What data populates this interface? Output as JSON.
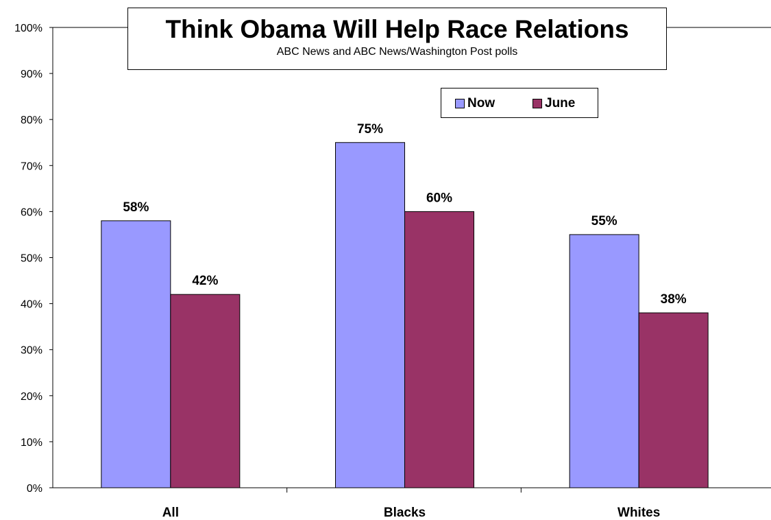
{
  "chart_data": {
    "type": "bar",
    "title": "Think Obama Will Help Race Relations",
    "subtitle": "ABC News and ABC News/Washington Post polls",
    "categories": [
      "All",
      "Blacks",
      "Whites"
    ],
    "series": [
      {
        "name": "Now",
        "values": [
          58,
          75,
          55
        ],
        "color": "#9999ff",
        "labels": [
          "58%",
          "75%",
          "55%"
        ]
      },
      {
        "name": "June",
        "values": [
          42,
          60,
          38
        ],
        "color": "#993366",
        "labels": [
          "42%",
          "60%",
          "38%"
        ]
      }
    ],
    "ylim": [
      0,
      100
    ],
    "yticks": [
      0,
      10,
      20,
      30,
      40,
      50,
      60,
      70,
      80,
      90,
      100
    ],
    "ytick_labels": [
      "0%",
      "10%",
      "20%",
      "30%",
      "40%",
      "50%",
      "60%",
      "70%",
      "80%",
      "90%",
      "100%"
    ],
    "grid": false,
    "legend_position": "top-right"
  }
}
